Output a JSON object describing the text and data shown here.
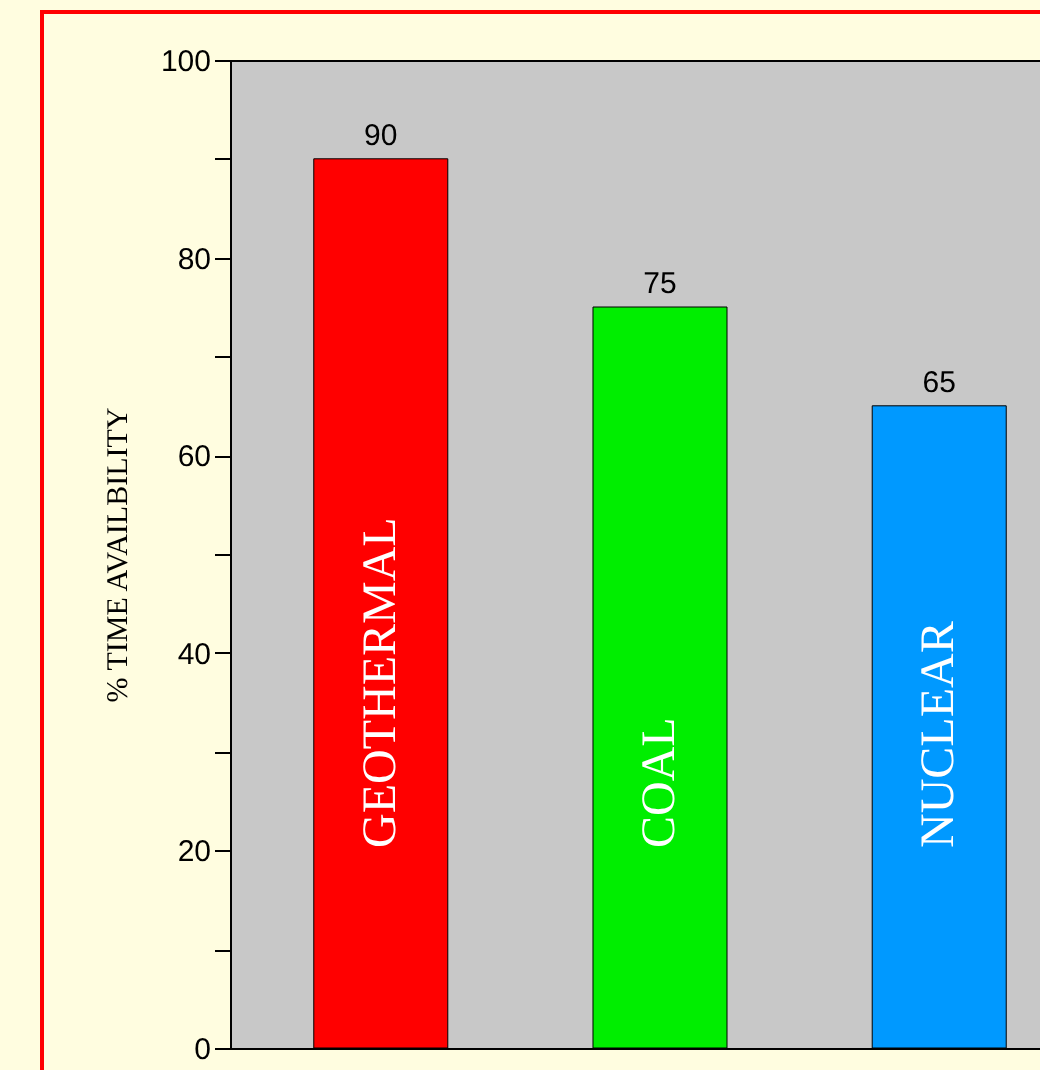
{
  "chart_data": {
    "type": "bar",
    "ylabel": "% TIME AVAILBILITY",
    "categories": [
      "GEOTHERMAL",
      "COAL",
      "NUCLEAR"
    ],
    "values": [
      90,
      75,
      65
    ],
    "colors": [
      "#ff0000",
      "#00ee00",
      "#0099ff"
    ],
    "ylim": [
      0,
      100
    ],
    "yticks": [
      0,
      {
        "value": 10,
        "label": null
      },
      20,
      {
        "value": 30,
        "label": null
      },
      40,
      {
        "value": 50,
        "label": null
      },
      60,
      {
        "value": 70,
        "label": null
      },
      80,
      {
        "value": 90,
        "label": null
      },
      100
    ],
    "data_labels": true,
    "grid": false,
    "legend": false,
    "tick_labels": "y"
  }
}
